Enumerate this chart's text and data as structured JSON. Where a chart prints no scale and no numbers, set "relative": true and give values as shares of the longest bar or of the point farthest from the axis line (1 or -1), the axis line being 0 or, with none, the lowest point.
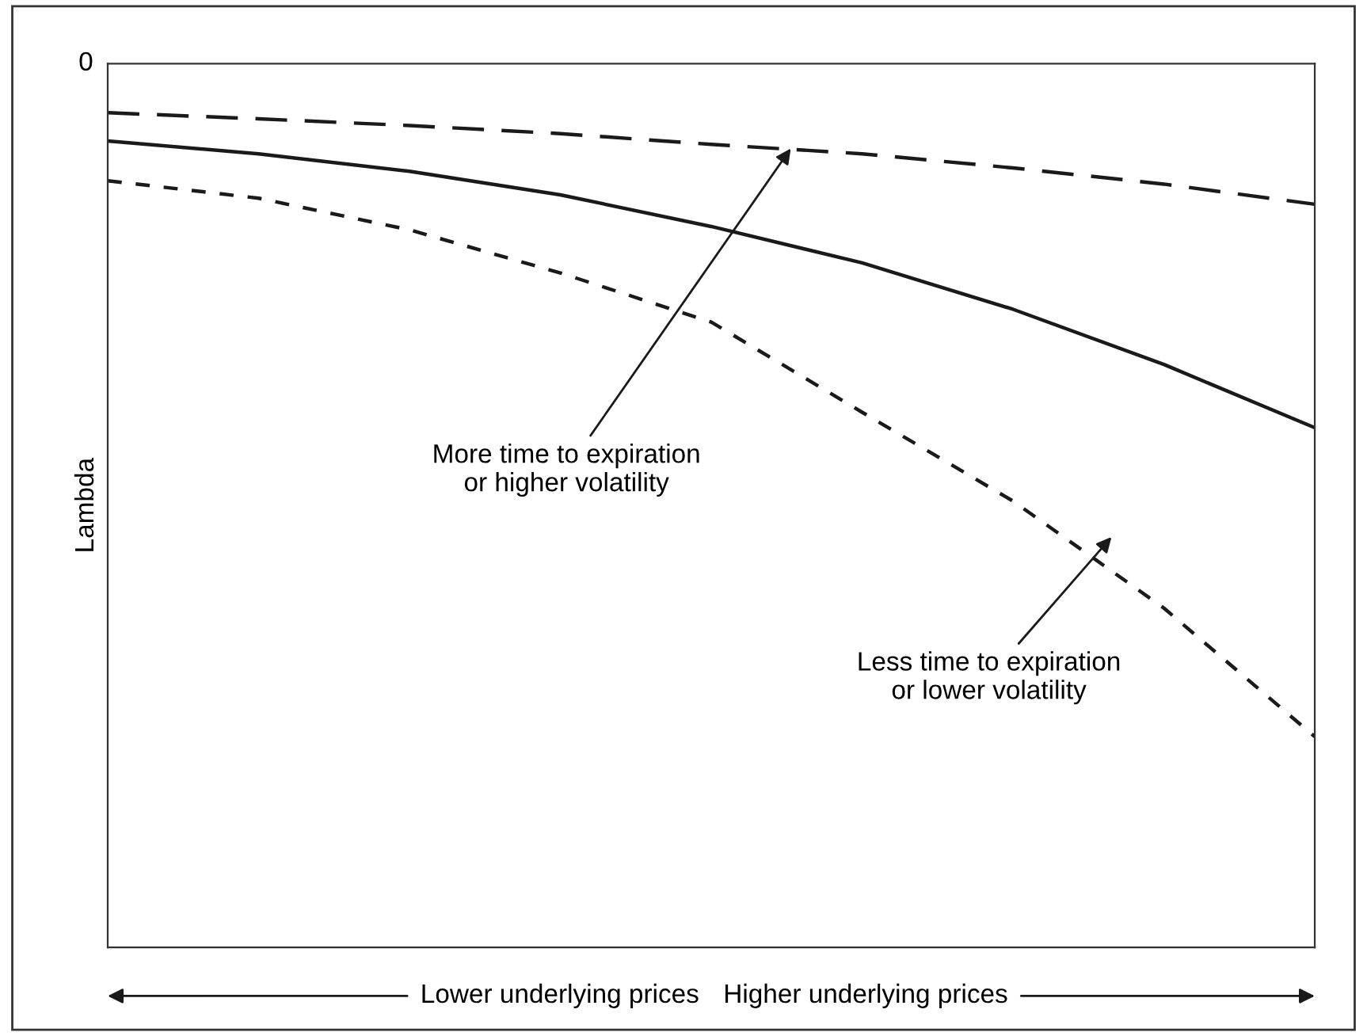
{
  "chart_data": {
    "type": "line",
    "relative": true,
    "ylabel": "Lambda",
    "categories": [
      null,
      null,
      null,
      null,
      null,
      null,
      null,
      null,
      null
    ],
    "series": [
      {
        "color": "#1a1a1a",
        "line_style": "dashed",
        "values": [
          -0.073,
          -0.082,
          -0.092,
          -0.104,
          -0.12,
          -0.134,
          -0.155,
          -0.179,
          -0.209
        ]
      },
      {
        "color": "#1a1a1a",
        "line_style": "solid",
        "values": [
          -0.115,
          -0.134,
          -0.16,
          -0.195,
          -0.242,
          -0.296,
          -0.365,
          -0.447,
          -0.541
        ]
      },
      {
        "color": "#1a1a1a",
        "line_style": "dotted",
        "values": [
          -0.174,
          -0.2,
          -0.247,
          -0.311,
          -0.384,
          -0.518,
          -0.65,
          -0.809,
          -1
        ]
      }
    ],
    "annotations": [
      "More time to expiration\nor higher volatility",
      "Less time to expiration\nor lower volatility",
      "Lower underlying prices",
      "Higher underlying prices",
      "0"
    ],
    "grid": false,
    "legend": false,
    "marker": "none"
  }
}
